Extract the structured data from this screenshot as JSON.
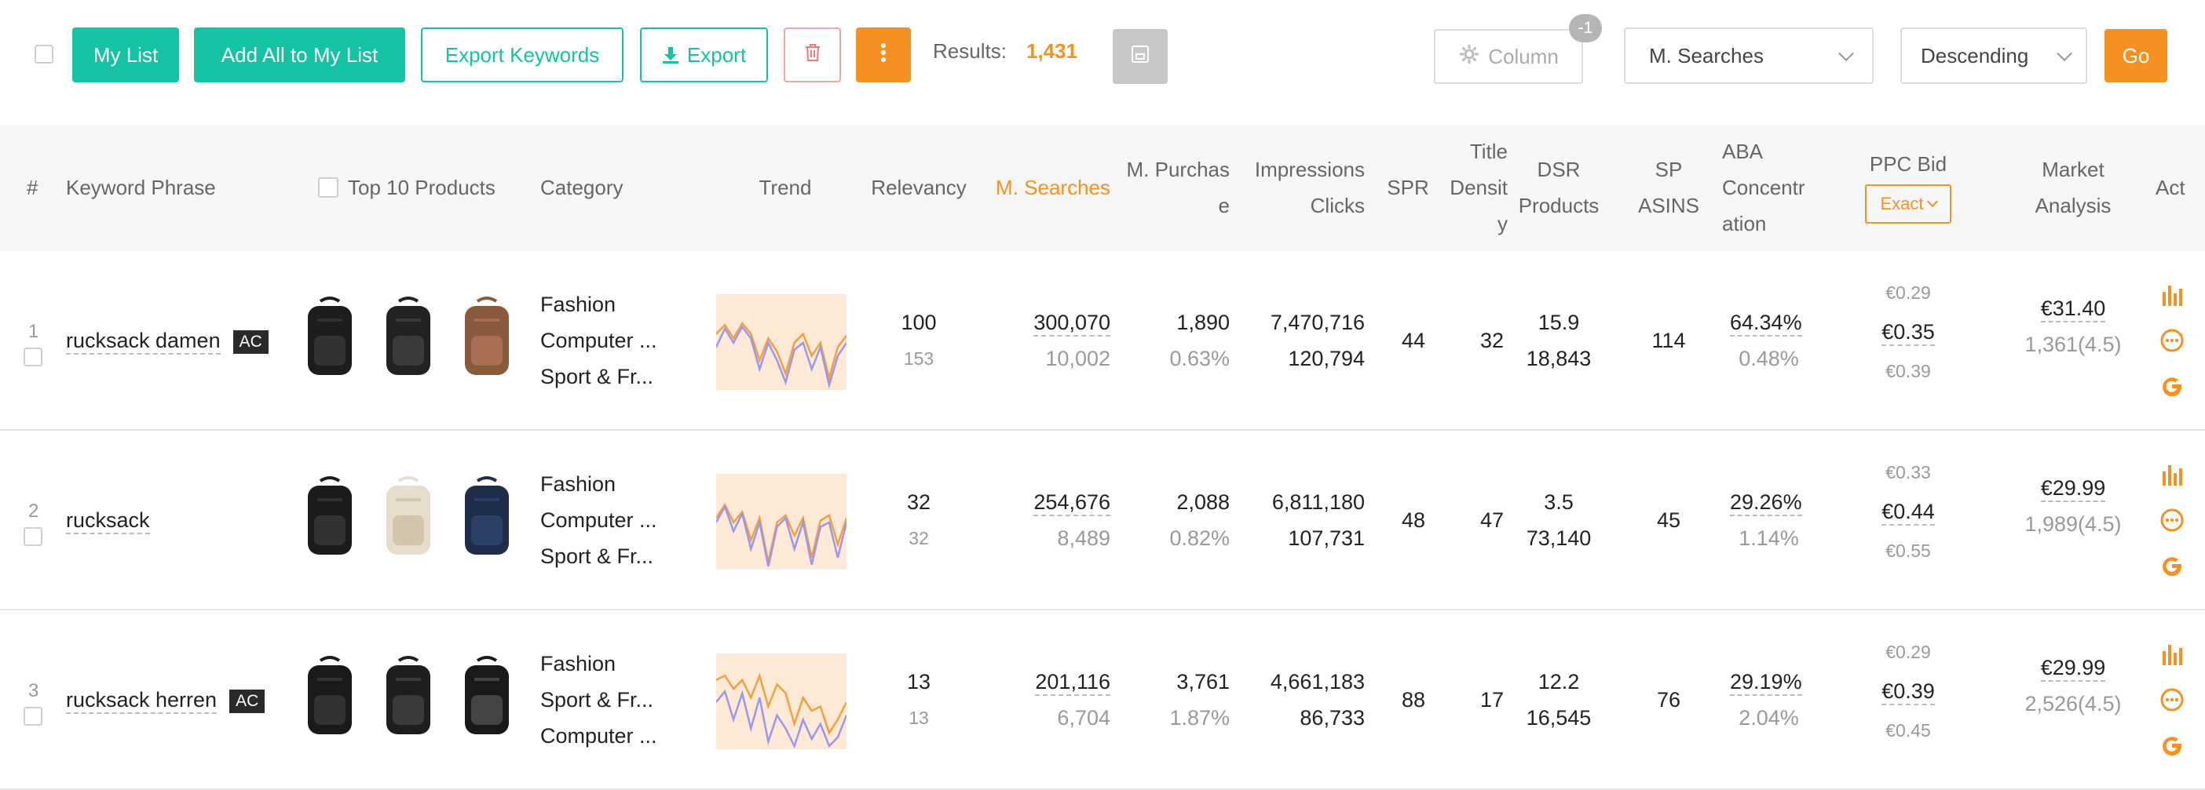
{
  "toolbar": {
    "my_list": "My List",
    "add_all": "Add All to My List",
    "export_keywords": "Export Keywords",
    "export": "Export",
    "results_label": "Results:",
    "results_value": "1,431",
    "column_label": "Column",
    "column_badge": "-1",
    "sort_field": "M. Searches",
    "sort_order": "Descending",
    "go": "Go"
  },
  "header": {
    "num": "#",
    "keyword": "Keyword Phrase",
    "top10": "Top 10 Products",
    "category": "Category",
    "trend": "Trend",
    "relevancy": "Relevancy",
    "msearches": "M. Searches",
    "mpurchase_1": "M. Purchas",
    "mpurchase_2": "e",
    "impressions": "Impressions",
    "clicks": "Clicks",
    "spr": "SPR",
    "title_1": "Title",
    "title_2": "Densit",
    "title_3": "y",
    "dsr": "DSR",
    "products": "Products",
    "sp": "SP",
    "asins": "ASINS",
    "aba_1": "ABA",
    "aba_2": "Concentr",
    "aba_3": "ation",
    "ppc": "PPC Bid",
    "ppc_mode": "Exact",
    "market_1": "Market",
    "market_2": "Analysis",
    "act": "Act"
  },
  "rows": [
    {
      "num": "1",
      "keyword": "rucksack damen",
      "badge": "AC",
      "cats": [
        "Fashion",
        "Computer ...",
        "Sport & Fr..."
      ],
      "relevancy": "100",
      "relevancy_sub": "153",
      "msearch": "300,070",
      "msearch_sub": "10,002",
      "mpurch": "1,890",
      "mpurch_sub": "0.63%",
      "impr": "7,470,716",
      "clicks": "120,794",
      "spr": "44",
      "title": "32",
      "dsr": "15.9",
      "products": "18,843",
      "sp": "114",
      "aba": "64.34%",
      "aba_sub": "0.48%",
      "ppc_low": "€0.29",
      "ppc_mid": "€0.35",
      "ppc_high": "€0.39",
      "price": "€31.40",
      "reviews": "1,361(4.5)"
    },
    {
      "num": "2",
      "keyword": "rucksack",
      "badge": "",
      "cats": [
        "Fashion",
        "Computer ...",
        "Sport & Fr..."
      ],
      "relevancy": "32",
      "relevancy_sub": "32",
      "msearch": "254,676",
      "msearch_sub": "8,489",
      "mpurch": "2,088",
      "mpurch_sub": "0.82%",
      "impr": "6,811,180",
      "clicks": "107,731",
      "spr": "48",
      "title": "47",
      "dsr": "3.5",
      "products": "73,140",
      "sp": "45",
      "aba": "29.26%",
      "aba_sub": "1.14%",
      "ppc_low": "€0.33",
      "ppc_mid": "€0.44",
      "ppc_high": "€0.55",
      "price": "€29.99",
      "reviews": "1,989(4.5)"
    },
    {
      "num": "3",
      "keyword": "rucksack herren",
      "badge": "AC",
      "cats": [
        "Fashion",
        "Sport & Fr...",
        "Computer ..."
      ],
      "relevancy": "13",
      "relevancy_sub": "13",
      "msearch": "201,116",
      "msearch_sub": "6,704",
      "mpurch": "3,761",
      "mpurch_sub": "1.87%",
      "impr": "4,661,183",
      "clicks": "86,733",
      "spr": "88",
      "title": "17",
      "dsr": "12.2",
      "products": "16,545",
      "sp": "76",
      "aba": "29.19%",
      "aba_sub": "2.04%",
      "ppc_low": "€0.29",
      "ppc_mid": "€0.39",
      "ppc_high": "€0.45",
      "price": "€29.99",
      "reviews": "2,526(4.5)"
    }
  ],
  "colors": {
    "accent": "#14c3a3",
    "orange": "#f59120",
    "trend_fill": "#fde9d6",
    "trend_orange": "#f0a040",
    "trend_blue": "#9b96f0"
  }
}
